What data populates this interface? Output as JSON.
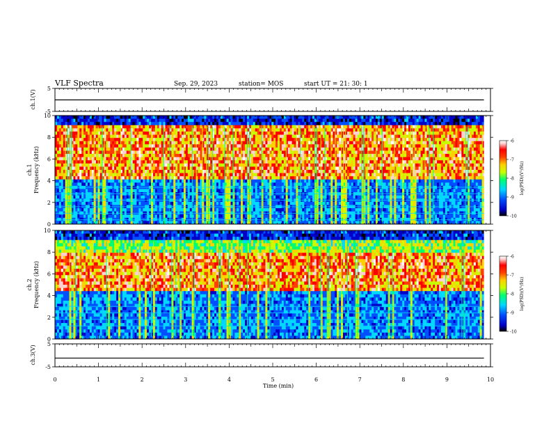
{
  "header": {
    "title": "VLF Spectra",
    "date": "Sep. 29, 2023",
    "station": "station= MOS",
    "start": "start UT =  21: 30: 1"
  },
  "colors": {
    "colormap": [
      "#000000",
      "#0000c8",
      "#0050ff",
      "#00d8ff",
      "#00ff70",
      "#c8ff00",
      "#ffd000",
      "#ff4000",
      "#ff0000",
      "#ffd0d0",
      "#ffffff"
    ]
  },
  "chart_data": [
    {
      "type": "line",
      "panel": "ch1-voltage",
      "ylabel": "ch.1(V)",
      "ylim": [
        -5,
        5
      ],
      "yticks": [
        "5",
        "-5"
      ],
      "series": [
        {
          "x": [
            0,
            9.85
          ],
          "y": [
            0,
            0
          ]
        }
      ]
    },
    {
      "type": "heatmap",
      "panel": "ch1-spectrogram",
      "ylabel": "ch.1\nFrequency (kHz)",
      "ylim": [
        0,
        10
      ],
      "yticks": [
        "0",
        "2",
        "4",
        "6",
        "8",
        "10"
      ],
      "colorbar": {
        "label": "log(PSD)(V²/Hz)",
        "range": [
          -10,
          -6
        ],
        "ticks": [
          "-6",
          "-7",
          "-8",
          "-9",
          "-10"
        ]
      },
      "dominant_band_khz": [
        4,
        9
      ],
      "narrowband_lines_khz": [
        0.4,
        1.0,
        1.6,
        2.2,
        2.8,
        3.4
      ]
    },
    {
      "type": "heatmap",
      "panel": "ch2-spectrogram",
      "ylabel": "ch.2\nFrequency (kHz)",
      "ylim": [
        0,
        10
      ],
      "yticks": [
        "0",
        "2",
        "4",
        "6",
        "8",
        "10"
      ],
      "colorbar": {
        "label": "log(PSD)(V²/Hz)",
        "range": [
          -10,
          -6
        ],
        "ticks": [
          "-6",
          "-7",
          "-8",
          "-9",
          "-10"
        ]
      },
      "dominant_band_khz": [
        4.5,
        8
      ],
      "narrowband_lines_khz": [
        1.2,
        1.8,
        2.4,
        3.0
      ]
    },
    {
      "type": "line",
      "panel": "ch3-voltage",
      "ylabel": "ch.3(V)",
      "ylim": [
        -5,
        5
      ],
      "yticks": [
        "5",
        "-5"
      ],
      "series": [
        {
          "x": [
            0,
            9.85
          ],
          "y": [
            -1.2,
            -1.2
          ]
        }
      ]
    }
  ],
  "xaxis": {
    "label": "Time (min)",
    "xlim": [
      0,
      10
    ],
    "ticks": [
      "0",
      "1",
      "2",
      "3",
      "4",
      "5",
      "6",
      "7",
      "8",
      "9",
      "10"
    ]
  }
}
